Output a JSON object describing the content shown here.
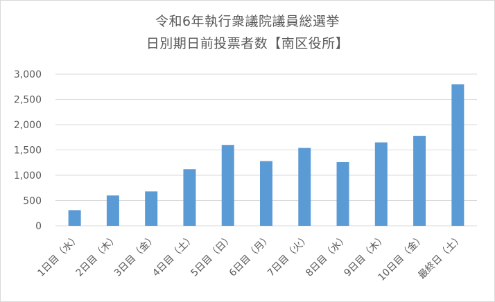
{
  "chart_data": {
    "type": "bar",
    "title_line1": "令和6年執行衆議院議員総選挙",
    "title_line2": "日別期日前投票者数【南区役所】",
    "categories": [
      "1日目（水）",
      "2日目（木）",
      "3日目（金）",
      "4日目（土）",
      "5日目（日）",
      "6日目（月）",
      "7日目（火）",
      "8日目（水）",
      "9日目（木）",
      "10日目（金）",
      "最終日（土）"
    ],
    "values": [
      310,
      600,
      680,
      1120,
      1600,
      1280,
      1540,
      1260,
      1650,
      1780,
      2800
    ],
    "ylim": [
      0,
      3000
    ],
    "yticks": [
      "0",
      "500",
      "1,000",
      "1,500",
      "2,000",
      "2,500",
      "3,000"
    ],
    "grid": true,
    "bar_color": "#5b9bd5",
    "grid_color": "#d9d9d9",
    "text_color": "#595959"
  }
}
